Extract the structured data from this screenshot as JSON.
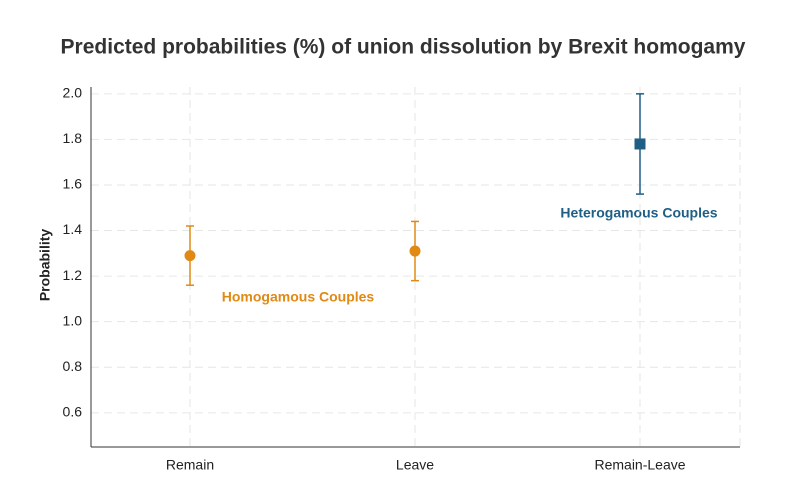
{
  "chart_data": {
    "type": "errorbar",
    "title": "Predicted probabilities (%) of union dissolution by Brexit homogamy",
    "y_label": "Probability",
    "categories": [
      "Remain",
      "Leave",
      "Remain-Leave"
    ],
    "series": [
      {
        "name": "Homogamous Couples",
        "color": "#e08a14",
        "marker": "circle",
        "values": [
          1.29,
          1.31,
          null
        ],
        "errors": [
          0.13,
          0.13,
          null
        ]
      },
      {
        "name": "Heterogamous Couples",
        "color": "#1f5f86",
        "marker": "square",
        "values": [
          null,
          null,
          1.78
        ],
        "errors": [
          null,
          null,
          0.22
        ]
      }
    ],
    "ylim": [
      0.45,
      2.03
    ],
    "yticks": [
      {
        "value": 0.6,
        "label": "0.6"
      },
      {
        "value": 0.8,
        "label": "0.8"
      },
      {
        "value": 1.0,
        "label": "1.0"
      },
      {
        "value": 1.2,
        "label": "1.2"
      },
      {
        "value": 1.4,
        "label": "1.4"
      },
      {
        "value": 1.6,
        "label": "1.6"
      },
      {
        "value": 1.8,
        "label": "1.8"
      },
      {
        "value": 2.0,
        "label": "2.0"
      }
    ],
    "grid": true
  }
}
